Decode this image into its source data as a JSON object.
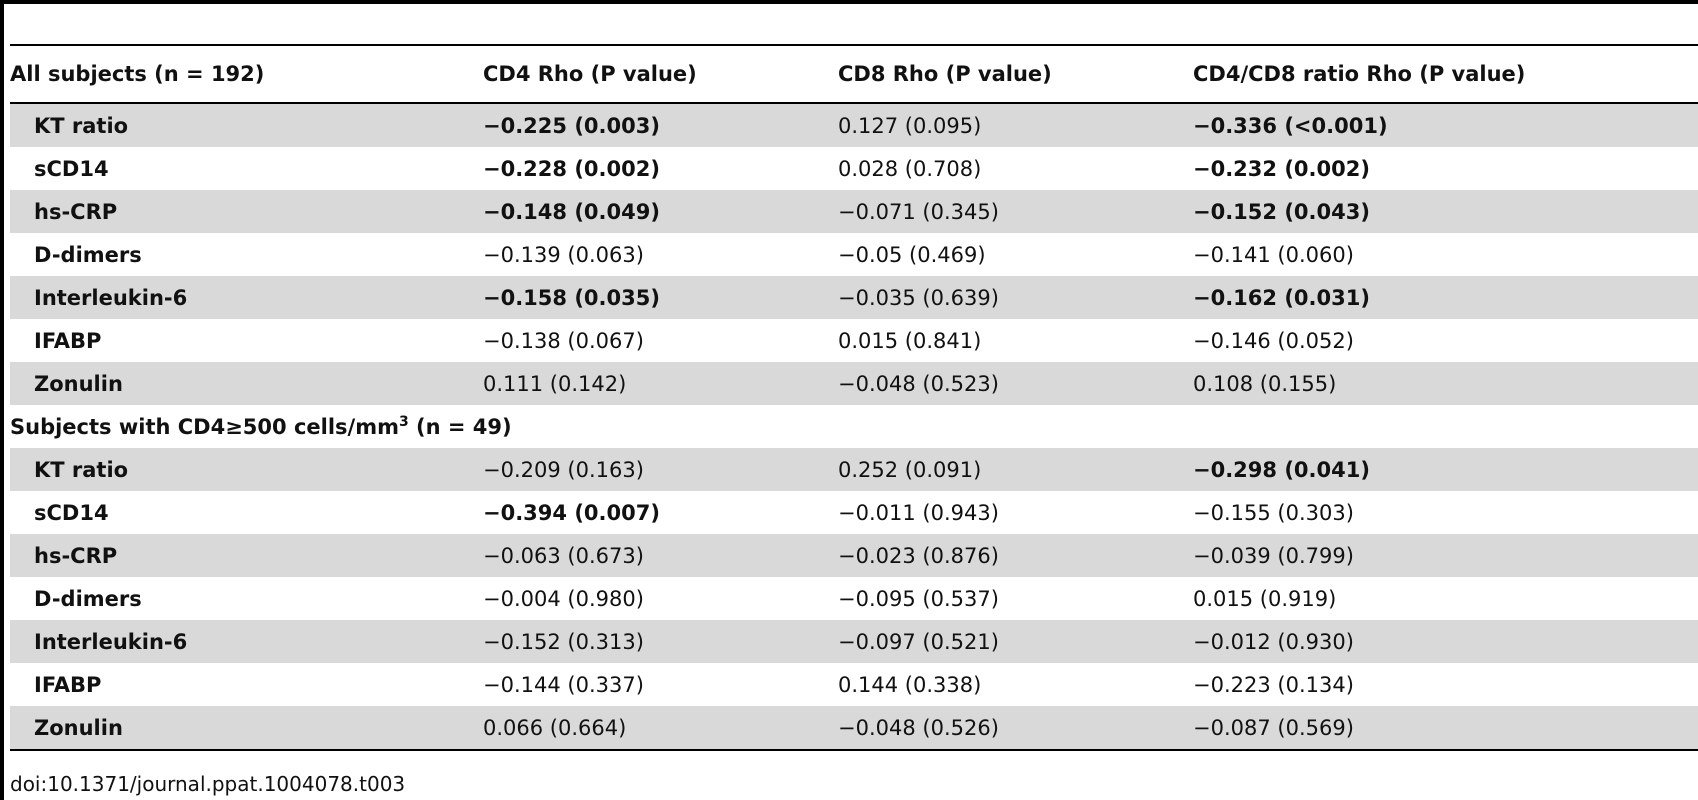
{
  "doi": "doi:10.1371/journal.ppat.1004078.t003",
  "header": {
    "col0": "All subjects (n = 192)",
    "col1": "CD4 Rho (P value)",
    "col2": "CD8 Rho (P value)",
    "col3": "CD4/CD8 ratio Rho (P value)"
  },
  "section2": {
    "prefix": "Subjects with CD4≥500 cells/mm",
    "sup": "3",
    "suffix": " (n = 49)"
  },
  "group1": [
    {
      "label": "KT ratio",
      "cd4": "−0.225 (0.003)",
      "cd8": "0.127 (0.095)",
      "ratio": "−0.336 (<0.001)"
    },
    {
      "label": "sCD14",
      "cd4": "−0.228 (0.002)",
      "cd8": "0.028 (0.708)",
      "ratio": "−0.232 (0.002)"
    },
    {
      "label": "hs-CRP",
      "cd4": "−0.148 (0.049)",
      "cd8": "−0.071 (0.345)",
      "ratio": "−0.152 (0.043)"
    },
    {
      "label": "D-dimers",
      "cd4": "−0.139 (0.063)",
      "cd8": "−0.05 (0.469)",
      "ratio": "−0.141 (0.060)"
    },
    {
      "label": "Interleukin-6",
      "cd4": "−0.158 (0.035)",
      "cd8": "−0.035 (0.639)",
      "ratio": "−0.162 (0.031)"
    },
    {
      "label": "IFABP",
      "cd4": "−0.138 (0.067)",
      "cd8": "0.015 (0.841)",
      "ratio": "−0.146 (0.052)"
    },
    {
      "label": "Zonulin",
      "cd4": "0.111 (0.142)",
      "cd8": "−0.048 (0.523)",
      "ratio": "0.108 (0.155)"
    }
  ],
  "group2": [
    {
      "label": "KT ratio",
      "cd4": "−0.209 (0.163)",
      "cd8": "0.252 (0.091)",
      "ratio": "−0.298 (0.041)"
    },
    {
      "label": "sCD14",
      "cd4": "−0.394 (0.007)",
      "cd8": "−0.011 (0.943)",
      "ratio": "−0.155 (0.303)"
    },
    {
      "label": "hs-CRP",
      "cd4": "−0.063 (0.673)",
      "cd8": "−0.023 (0.876)",
      "ratio": "−0.039 (0.799)"
    },
    {
      "label": "D-dimers",
      "cd4": "−0.004 (0.980)",
      "cd8": "−0.095 (0.537)",
      "ratio": "0.015 (0.919)"
    },
    {
      "label": "Interleukin-6",
      "cd4": "−0.152 (0.313)",
      "cd8": "−0.097 (0.521)",
      "ratio": "−0.012 (0.930)"
    },
    {
      "label": "IFABP",
      "cd4": "−0.144 (0.337)",
      "cd8": "0.144 (0.338)",
      "ratio": "−0.223 (0.134)"
    },
    {
      "label": "Zonulin",
      "cd4": "0.066 (0.664)",
      "cd8": "−0.048 (0.526)",
      "ratio": "−0.087 (0.569)"
    }
  ]
}
